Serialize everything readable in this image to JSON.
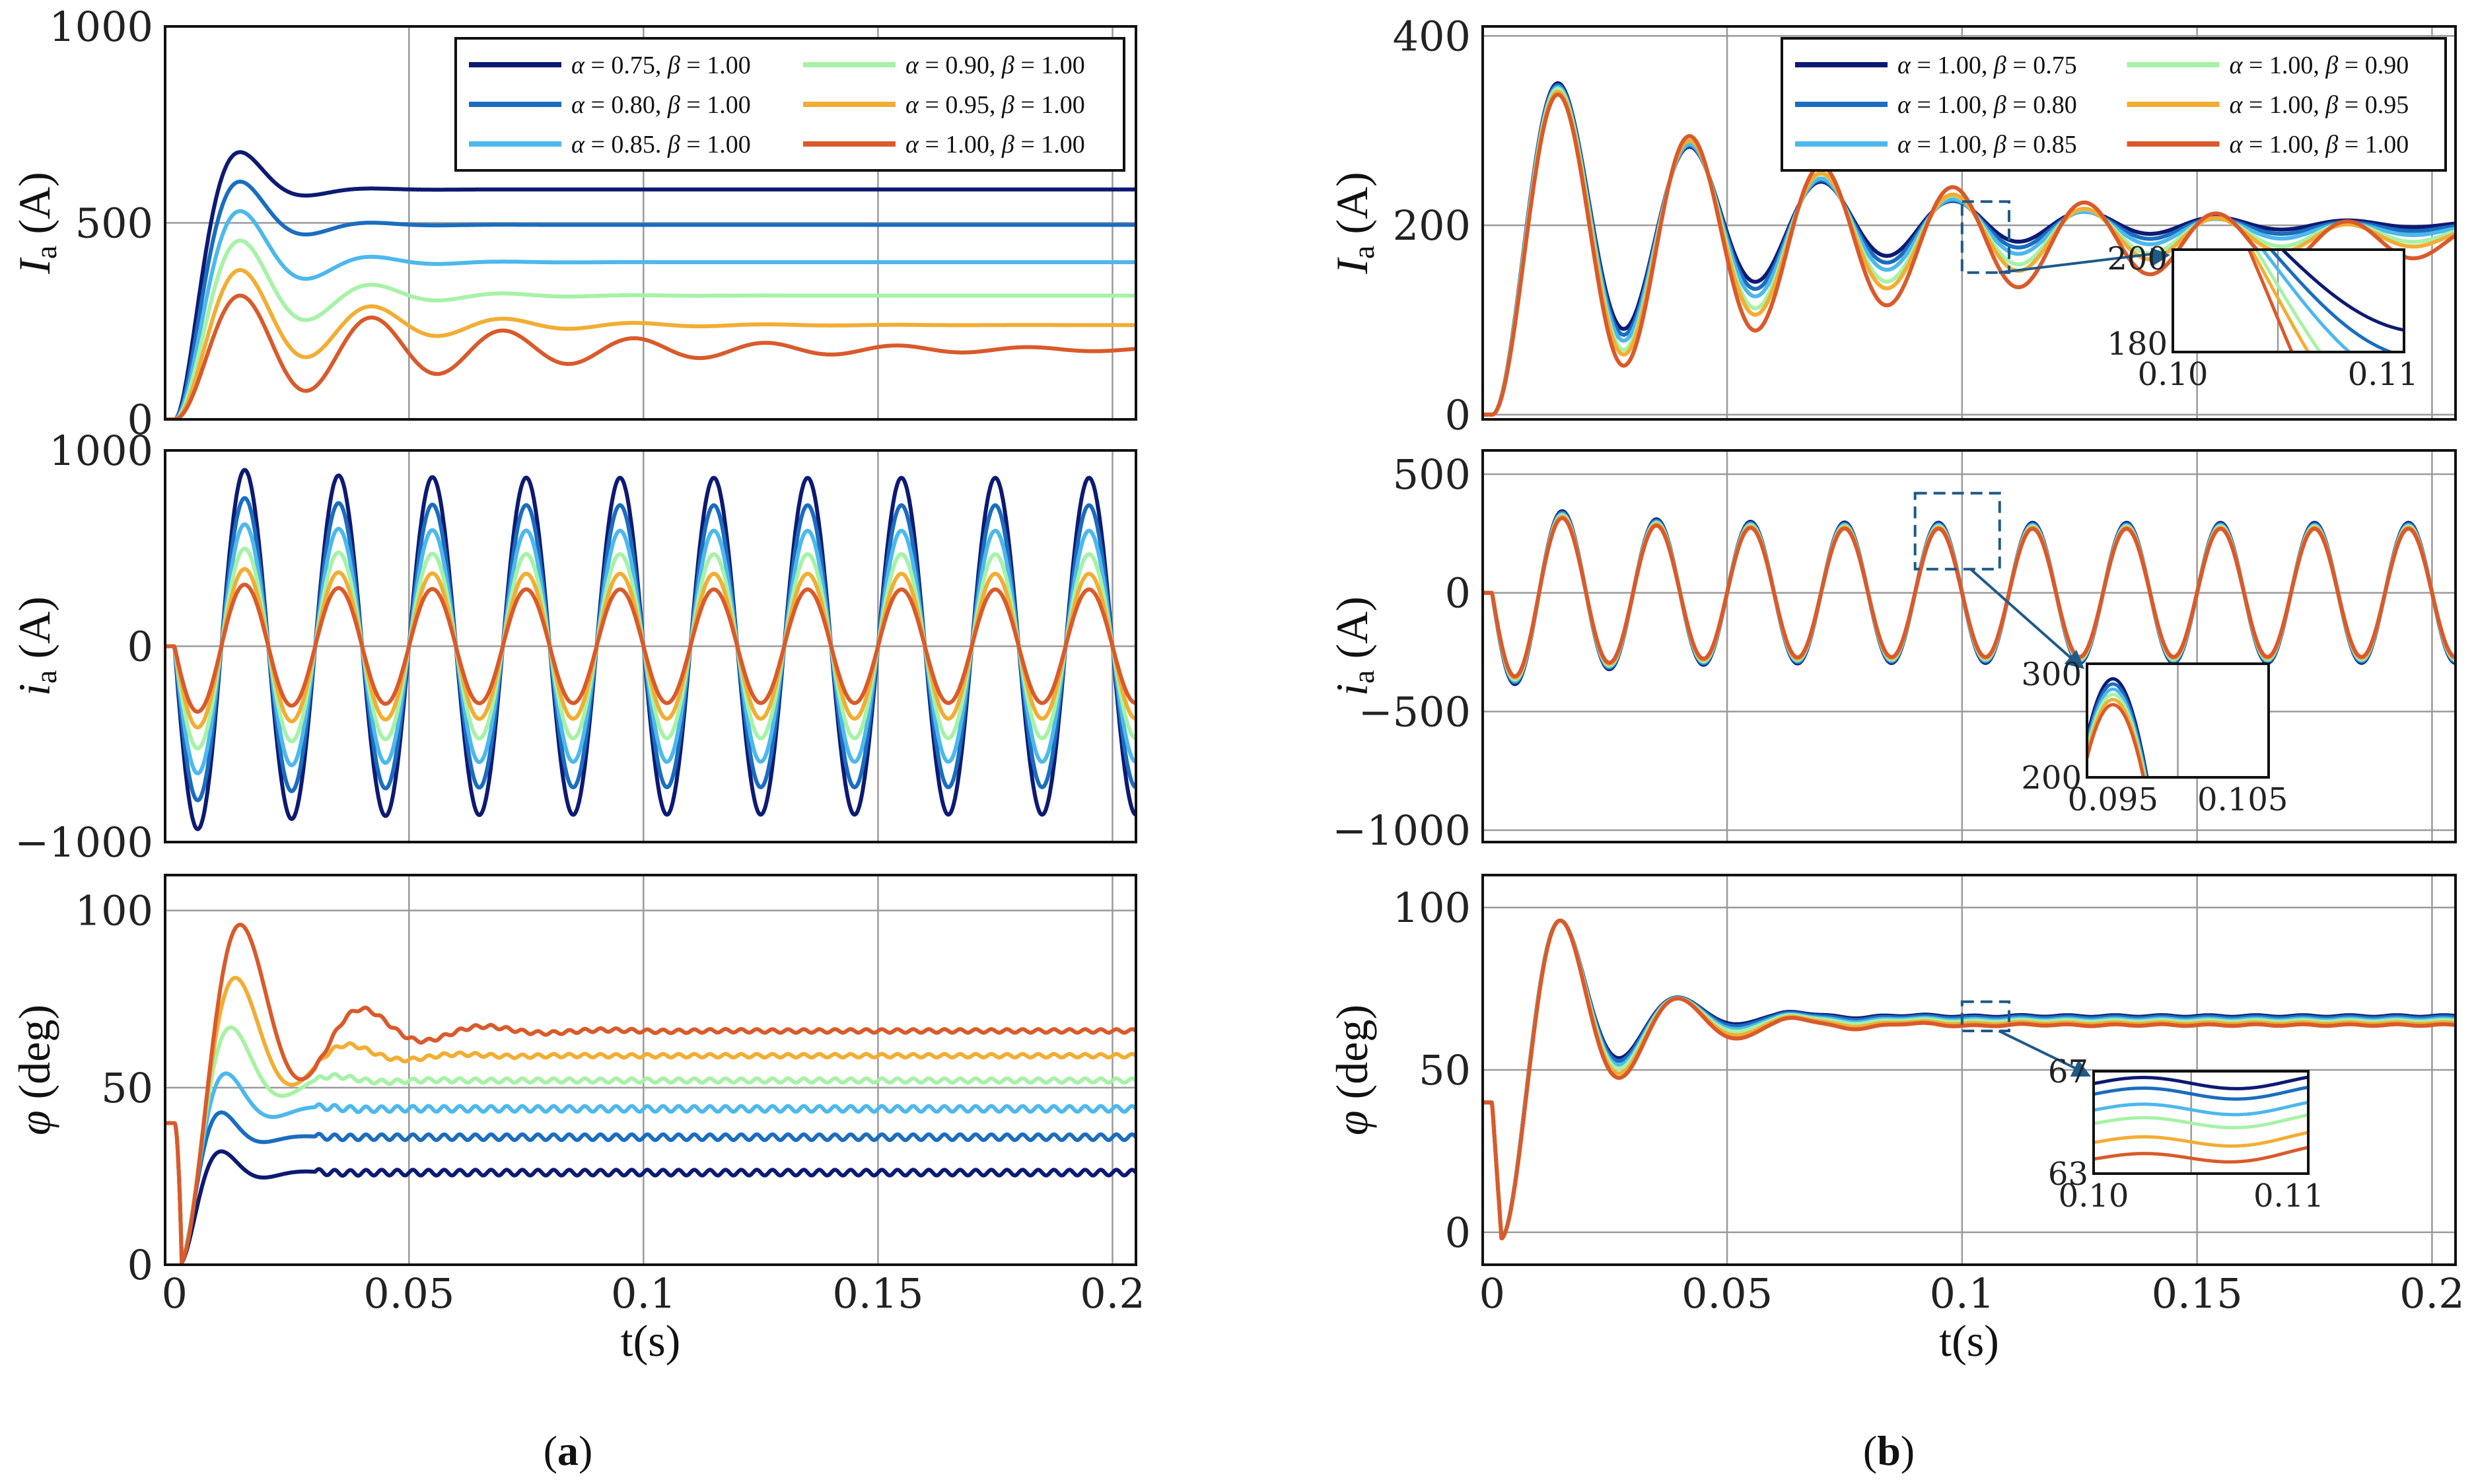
{
  "colors": [
    "#0d1a73",
    "#1a6dbf",
    "#4db8ec",
    "#a6f2a6",
    "#f2ad33",
    "#d95a2b"
  ],
  "panel_labels": {
    "a": {
      "open": "(",
      "letter": "a",
      "close": ")"
    },
    "b": {
      "open": "(",
      "letter": "b",
      "close": ")"
    }
  },
  "chart_data": [
    {
      "id": "a1",
      "type": "line",
      "ylabel": {
        "sym": "I",
        "sub": "a",
        "unit": " (A)"
      },
      "xlim": [
        -0.002,
        0.205
      ],
      "ylim": [
        0,
        1000
      ],
      "xticks": [
        0,
        0.05,
        0.1,
        0.15,
        0.2
      ],
      "xtick_labels": [
        "0",
        "0.05",
        "0.1",
        "0.15",
        "0.2"
      ],
      "yticks": [
        0,
        500,
        1000
      ],
      "ytick_labels": [
        "0",
        "500",
        "1000"
      ],
      "xlabel": "",
      "grid": true,
      "series": [
        {
          "name": "α = 0.75, β = 1.00",
          "kind": "step",
          "final": 585,
          "peak": 680,
          "tpeak": 0.014,
          "ripple": 0
        },
        {
          "name": "α = 0.80, β = 1.00",
          "kind": "step",
          "final": 495,
          "peak": 605,
          "tpeak": 0.014,
          "ripple": 0
        },
        {
          "name": "α = 0.85, β = 1.00",
          "kind": "step",
          "final": 400,
          "peak": 530,
          "tpeak": 0.014,
          "ripple": 0
        },
        {
          "name": "α = 0.90, β = 1.00",
          "kind": "step",
          "final": 315,
          "peak": 455,
          "tpeak": 0.014,
          "ripple": 0
        },
        {
          "name": "α = 0.95, β = 1.00",
          "kind": "step",
          "final": 240,
          "peak": 380,
          "tpeak": 0.014,
          "ripple": 0
        },
        {
          "name": "α = 1.00, β = 1.00",
          "kind": "step",
          "final": 178,
          "peak": 315,
          "tpeak": 0.014,
          "ripple": 0
        }
      ],
      "legend": {
        "placement": "top-right",
        "columns": 2,
        "style": "a",
        "entries": [
          {
            "a": "α",
            "av": " = 0.75, ",
            "b": "β",
            "bv": " = 1.00"
          },
          {
            "a": "α",
            "av": " = 0.80, ",
            "b": "β",
            "bv": " = 1.00"
          },
          {
            "a": "α",
            "av": " = 0.85. ",
            "b": "β",
            "bv": " = 1.00"
          },
          {
            "a": "α",
            "av": " = 0.90, ",
            "b": "β",
            "bv": " = 1.00"
          },
          {
            "a": "α",
            "av": " = 0.95, ",
            "b": "β",
            "bv": " = 1.00"
          },
          {
            "a": "α",
            "av": " = 1.00, ",
            "b": "β",
            "bv": " = 1.00"
          }
        ]
      }
    },
    {
      "id": "a2",
      "type": "line",
      "ylabel": {
        "sym": "i",
        "sub": "a",
        "unit": " (A)"
      },
      "xlim": [
        -0.002,
        0.205
      ],
      "ylim": [
        -1000,
        1000
      ],
      "xticks": [
        0,
        0.05,
        0.1,
        0.15,
        0.2
      ],
      "xtick_labels": [
        "0",
        "0.05",
        "0.1",
        "0.15",
        "0.2"
      ],
      "yticks": [
        -1000,
        0,
        1000
      ],
      "ytick_labels": [
        "−1000",
        "0",
        "1000"
      ],
      "xlabel": "",
      "grid": true,
      "series": [
        {
          "name": "α = 0.75, β = 1.00",
          "kind": "sine",
          "amp": 860,
          "freq": 50,
          "extra": 100
        },
        {
          "name": "α = 0.80, β = 1.00",
          "kind": "sine",
          "amp": 720,
          "freq": 50,
          "extra": 90
        },
        {
          "name": "α = 0.85, β = 1.00",
          "kind": "sine",
          "amp": 590,
          "freq": 50,
          "extra": 80
        },
        {
          "name": "α = 0.90, β = 1.00",
          "kind": "sine",
          "amp": 470,
          "freq": 50,
          "extra": 70
        },
        {
          "name": "α = 0.95, β = 1.00",
          "kind": "sine",
          "amp": 370,
          "freq": 50,
          "extra": 60
        },
        {
          "name": "α = 1.00, β = 1.00",
          "kind": "sine",
          "amp": 290,
          "freq": 50,
          "extra": 60
        }
      ]
    },
    {
      "id": "a3",
      "type": "line",
      "ylabel": {
        "sym": "φ",
        "sub": "",
        "unit": " (deg)"
      },
      "xlim": [
        -0.002,
        0.205
      ],
      "ylim": [
        0,
        110
      ],
      "xticks": [
        0,
        0.05,
        0.1,
        0.15,
        0.2
      ],
      "xtick_labels": [
        "0",
        "0.05",
        "0.1",
        "0.15",
        "0.2"
      ],
      "yticks": [
        0,
        50,
        100
      ],
      "ytick_labels": [
        "0",
        "50",
        "100"
      ],
      "xlabel": "t(s)",
      "grid": true,
      "series": [
        {
          "name": "α = 0.75, β = 1.00",
          "kind": "phase",
          "final": 26,
          "peak": 32,
          "tpeak": 0.01,
          "dip": 3,
          "ripple": 0.8
        },
        {
          "name": "α = 0.80, β = 1.00",
          "kind": "phase",
          "final": 36,
          "peak": 43,
          "tpeak": 0.01,
          "dip": 3,
          "ripple": 0.8
        },
        {
          "name": "α = 0.85, β = 1.00",
          "kind": "phase",
          "final": 44,
          "peak": 54,
          "tpeak": 0.011,
          "dip": 3,
          "ripple": 0.8
        },
        {
          "name": "α = 0.90, β = 1.00",
          "kind": "phase",
          "final": 52,
          "peak": 67,
          "tpeak": 0.012,
          "dip": 3,
          "ripple": 0.6
        },
        {
          "name": "α = 0.95, β = 1.00",
          "kind": "phase",
          "final": 59,
          "peak": 81,
          "tpeak": 0.013,
          "dip": 3,
          "ripple": 0.5
        },
        {
          "name": "α = 1.00, β = 1.00",
          "kind": "phase",
          "final": 66,
          "peak": 96,
          "tpeak": 0.014,
          "dip": 3,
          "ripple": 0.5
        }
      ]
    },
    {
      "id": "b1",
      "type": "line",
      "ylabel": {
        "sym": "I",
        "sub": "a",
        "unit": " (A)"
      },
      "xlim": [
        -0.002,
        0.205
      ],
      "ylim": [
        -5,
        410
      ],
      "xticks": [
        0,
        0.05,
        0.1,
        0.15,
        0.2
      ],
      "xtick_labels": [
        "0",
        "0.05",
        "0.1",
        "0.15",
        "0.2"
      ],
      "yticks": [
        0,
        200,
        400
      ],
      "ytick_labels": [
        "0",
        "200",
        "400"
      ],
      "xlabel": "",
      "grid": true,
      "series": [
        {
          "name": "α = 1.00, β = 0.75",
          "kind": "osc",
          "final": 201,
          "peak": 350,
          "tpeak": 0.014,
          "decay": 48
        },
        {
          "name": "α = 1.00, β = 0.80",
          "kind": "osc",
          "final": 198,
          "peak": 348,
          "tpeak": 0.014,
          "decay": 48
        },
        {
          "name": "α = 1.00, β = 0.85",
          "kind": "osc",
          "final": 195,
          "peak": 346,
          "tpeak": 0.014,
          "decay": 48
        },
        {
          "name": "α = 1.00, β = 0.90",
          "kind": "osc",
          "final": 191,
          "peak": 344,
          "tpeak": 0.014,
          "decay": 48
        },
        {
          "name": "α = 1.00, β = 0.95",
          "kind": "osc",
          "final": 188,
          "peak": 341,
          "tpeak": 0.014,
          "decay": 48
        },
        {
          "name": "α = 1.00, β = 1.00",
          "kind": "osc",
          "final": 183,
          "peak": 338,
          "tpeak": 0.014,
          "decay": 48
        }
      ],
      "legend": {
        "placement": "top-right",
        "columns": 2,
        "style": "b",
        "entries": [
          {
            "a": "α",
            "av": " = 1.00, ",
            "b": "β",
            "bv": " = 0.75"
          },
          {
            "a": "α",
            "av": " = 1.00, ",
            "b": "β",
            "bv": " = 0.80"
          },
          {
            "a": "α",
            "av": " = 1.00, ",
            "b": "β",
            "bv": " = 0.85"
          },
          {
            "a": "α",
            "av": " = 1.00, ",
            "b": "β",
            "bv": " = 0.90"
          },
          {
            "a": "α",
            "av": " = 1.00, ",
            "b": "β",
            "bv": " = 0.95"
          },
          {
            "a": "α",
            "av": " = 1.00, ",
            "b": "β",
            "bv": " = 1.00"
          }
        ]
      },
      "zoom_box": {
        "x": [
          0.1,
          0.11
        ],
        "y": [
          150,
          225
        ]
      },
      "inset": {
        "xlim": [
          0.1,
          0.111
        ],
        "ylim": [
          178,
          202
        ],
        "xticks": [
          0.1,
          0.11
        ],
        "xtick_labels": [
          "0.10",
          "0.11"
        ],
        "yticks": [
          180,
          200
        ],
        "ytick_labels": [
          "180",
          "200"
        ]
      }
    },
    {
      "id": "b2",
      "type": "line",
      "ylabel": {
        "sym": "i",
        "sub": "a",
        "unit": " (A)"
      },
      "xlim": [
        -0.002,
        0.205
      ],
      "ylim": [
        -1050,
        600
      ],
      "xticks": [
        0,
        0.05,
        0.1,
        0.15,
        0.2
      ],
      "xtick_labels": [
        "0",
        "0.05",
        "0.1",
        "0.15",
        "0.2"
      ],
      "yticks": [
        -1000,
        -500,
        0,
        500
      ],
      "ytick_labels": [
        "−1000",
        "−500",
        "0",
        "500"
      ],
      "xlabel": "",
      "grid": true,
      "series": [
        {
          "name": "α = 1.00, β = 0.75",
          "kind": "sine",
          "amp": 295,
          "freq": 50,
          "extra": 120
        },
        {
          "name": "α = 1.00, β = 0.80",
          "kind": "sine",
          "amp": 290,
          "freq": 50,
          "extra": 118
        },
        {
          "name": "α = 1.00, β = 0.85",
          "kind": "sine",
          "amp": 285,
          "freq": 50,
          "extra": 116
        },
        {
          "name": "α = 1.00, β = 0.90",
          "kind": "sine",
          "amp": 280,
          "freq": 50,
          "extra": 114
        },
        {
          "name": "α = 1.00, β = 0.95",
          "kind": "sine",
          "amp": 275,
          "freq": 50,
          "extra": 112
        },
        {
          "name": "α = 1.00, β = 1.00",
          "kind": "sine",
          "amp": 270,
          "freq": 50,
          "extra": 110
        }
      ],
      "zoom_box": {
        "x": [
          0.09,
          0.108
        ],
        "y": [
          100,
          420
        ]
      },
      "inset": {
        "xlim": [
          0.093,
          0.107
        ],
        "ylim": [
          200,
          310
        ],
        "xticks": [
          0.095,
          0.105
        ],
        "xtick_labels": [
          "0.095",
          "0.105"
        ],
        "yticks": [
          200,
          300
        ],
        "ytick_labels": [
          "200",
          "300"
        ]
      }
    },
    {
      "id": "b3",
      "type": "line",
      "ylabel": {
        "sym": "φ",
        "sub": "",
        "unit": " (deg)"
      },
      "xlim": [
        -0.002,
        0.205
      ],
      "ylim": [
        -10,
        110
      ],
      "xticks": [
        0,
        0.05,
        0.1,
        0.15,
        0.2
      ],
      "xtick_labels": [
        "0",
        "0.05",
        "0.1",
        "0.15",
        "0.2"
      ],
      "yticks": [
        0,
        50,
        100
      ],
      "ytick_labels": [
        "0",
        "50",
        "100"
      ],
      "xlabel": "t(s)",
      "grid": true,
      "series": [
        {
          "name": "α = 1.00, β = 0.75",
          "kind": "phaseb",
          "final": 66.6,
          "ripple": 0.25
        },
        {
          "name": "α = 1.00, β = 0.80",
          "kind": "phaseb",
          "final": 66.2,
          "ripple": 0.25
        },
        {
          "name": "α = 1.00, β = 0.85",
          "kind": "phaseb",
          "final": 65.6,
          "ripple": 0.25
        },
        {
          "name": "α = 1.00, β = 0.90",
          "kind": "phaseb",
          "final": 65.1,
          "ripple": 0.25
        },
        {
          "name": "α = 1.00, β = 0.95",
          "kind": "phaseb",
          "final": 64.4,
          "ripple": 0.25
        },
        {
          "name": "α = 1.00, β = 1.00",
          "kind": "phaseb",
          "final": 63.8,
          "ripple": 0.25
        }
      ],
      "zoom_box": {
        "x": [
          0.1,
          0.11
        ],
        "y": [
          62,
          71
        ]
      },
      "inset": {
        "xlim": [
          0.1,
          0.111
        ],
        "ylim": [
          63,
          67
        ],
        "xticks": [
          0.1,
          0.11
        ],
        "xtick_labels": [
          "0.10",
          "0.11"
        ],
        "yticks": [
          63,
          67
        ],
        "ytick_labels": [
          "63",
          "67"
        ]
      }
    }
  ]
}
